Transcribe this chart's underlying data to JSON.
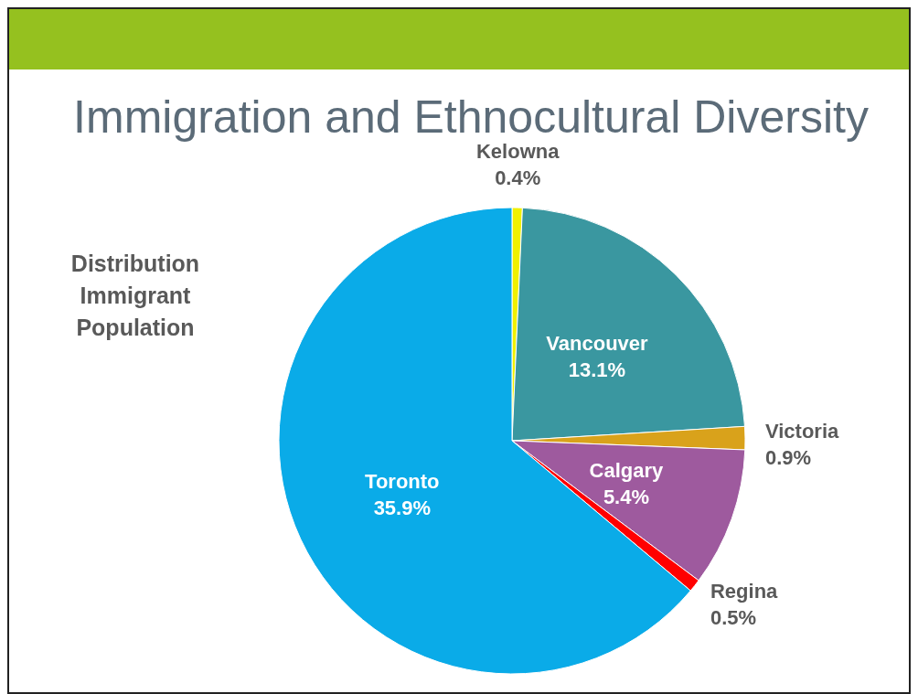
{
  "chart_data": {
    "type": "pie",
    "title": "Immigration and Ethnocultural Diversity",
    "subtitle": "Distribution Immigrant Population",
    "categories": [
      "Kelowna",
      "Vancouver",
      "Victoria",
      "Calgary",
      "Regina",
      "Toronto"
    ],
    "values": [
      0.4,
      13.1,
      0.9,
      5.4,
      0.5,
      35.9
    ],
    "value_labels": [
      "0.4%",
      "13.1%",
      "0.9%",
      "5.4%",
      "0.5%",
      "35.9%"
    ],
    "colors": [
      "#f0f000",
      "#3a97a0",
      "#d9a21b",
      "#9e5a9e",
      "#ff0000",
      "#0aabe8"
    ]
  }
}
